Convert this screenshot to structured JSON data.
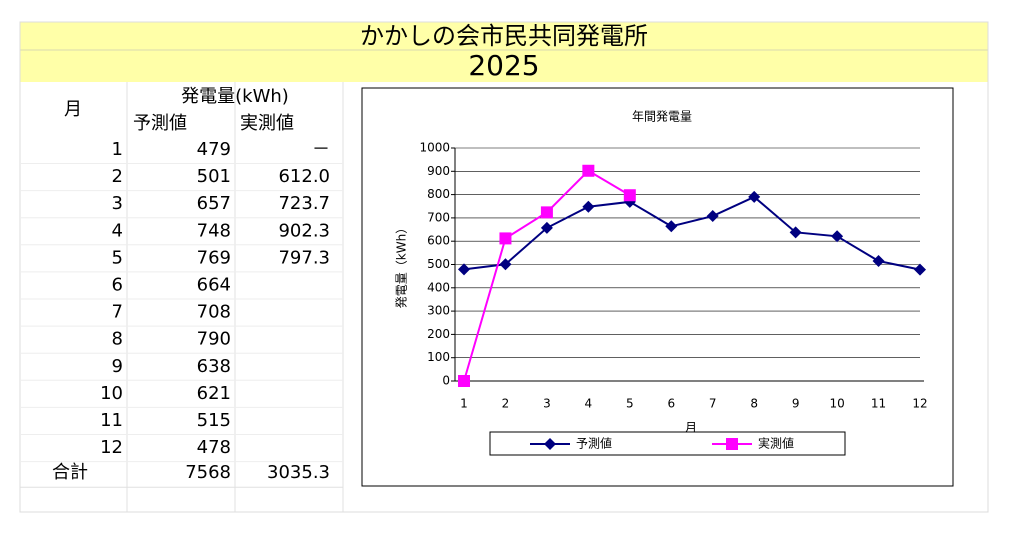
{
  "header": {
    "title": "かかしの会市民共同発電所",
    "year": "2025"
  },
  "table": {
    "month_header": "月",
    "group_header": "発電量(kWh)",
    "columns": [
      "予測値",
      "実測値"
    ],
    "rows": [
      [
        "1",
        "479",
        "－"
      ],
      [
        "2",
        "501",
        "612.0"
      ],
      [
        "3",
        "657",
        "723.7"
      ],
      [
        "4",
        "748",
        "902.3"
      ],
      [
        "5",
        "769",
        "797.3"
      ],
      [
        "6",
        "664"
      ],
      [
        "7",
        "708"
      ],
      [
        "8",
        "790"
      ],
      [
        "9",
        "638"
      ],
      [
        "10",
        "621"
      ],
      [
        "11",
        "515"
      ],
      [
        "12",
        "478"
      ]
    ],
    "total": {
      "label": "合計",
      "values": [
        "7568",
        "3035.3"
      ]
    }
  },
  "chart_data": {
    "type": "line",
    "title": "年間発電量",
    "x_label": "月",
    "y_label": "発電量（kWh）",
    "categories": [
      "1",
      "2",
      "3",
      "4",
      "5",
      "6",
      "7",
      "8",
      "9",
      "10",
      "11",
      "12"
    ],
    "series": [
      {
        "name": "予測値",
        "color": "#000080",
        "marker": "diamond",
        "values": [
          479,
          501,
          657,
          748,
          769,
          664,
          708,
          790,
          638,
          621,
          515,
          478
        ]
      },
      {
        "name": "実測値",
        "color": "#ff00ff",
        "marker": "square",
        "values": [
          0,
          612.0,
          723.7,
          902.3,
          797.3,
          null,
          null,
          null,
          null,
          null,
          null,
          null
        ]
      }
    ],
    "ylim": [
      0,
      1000
    ],
    "yticks": [
      0,
      100,
      200,
      300,
      400,
      500,
      600,
      700,
      800,
      900,
      1000
    ],
    "grid": true,
    "legend": "bottom"
  }
}
